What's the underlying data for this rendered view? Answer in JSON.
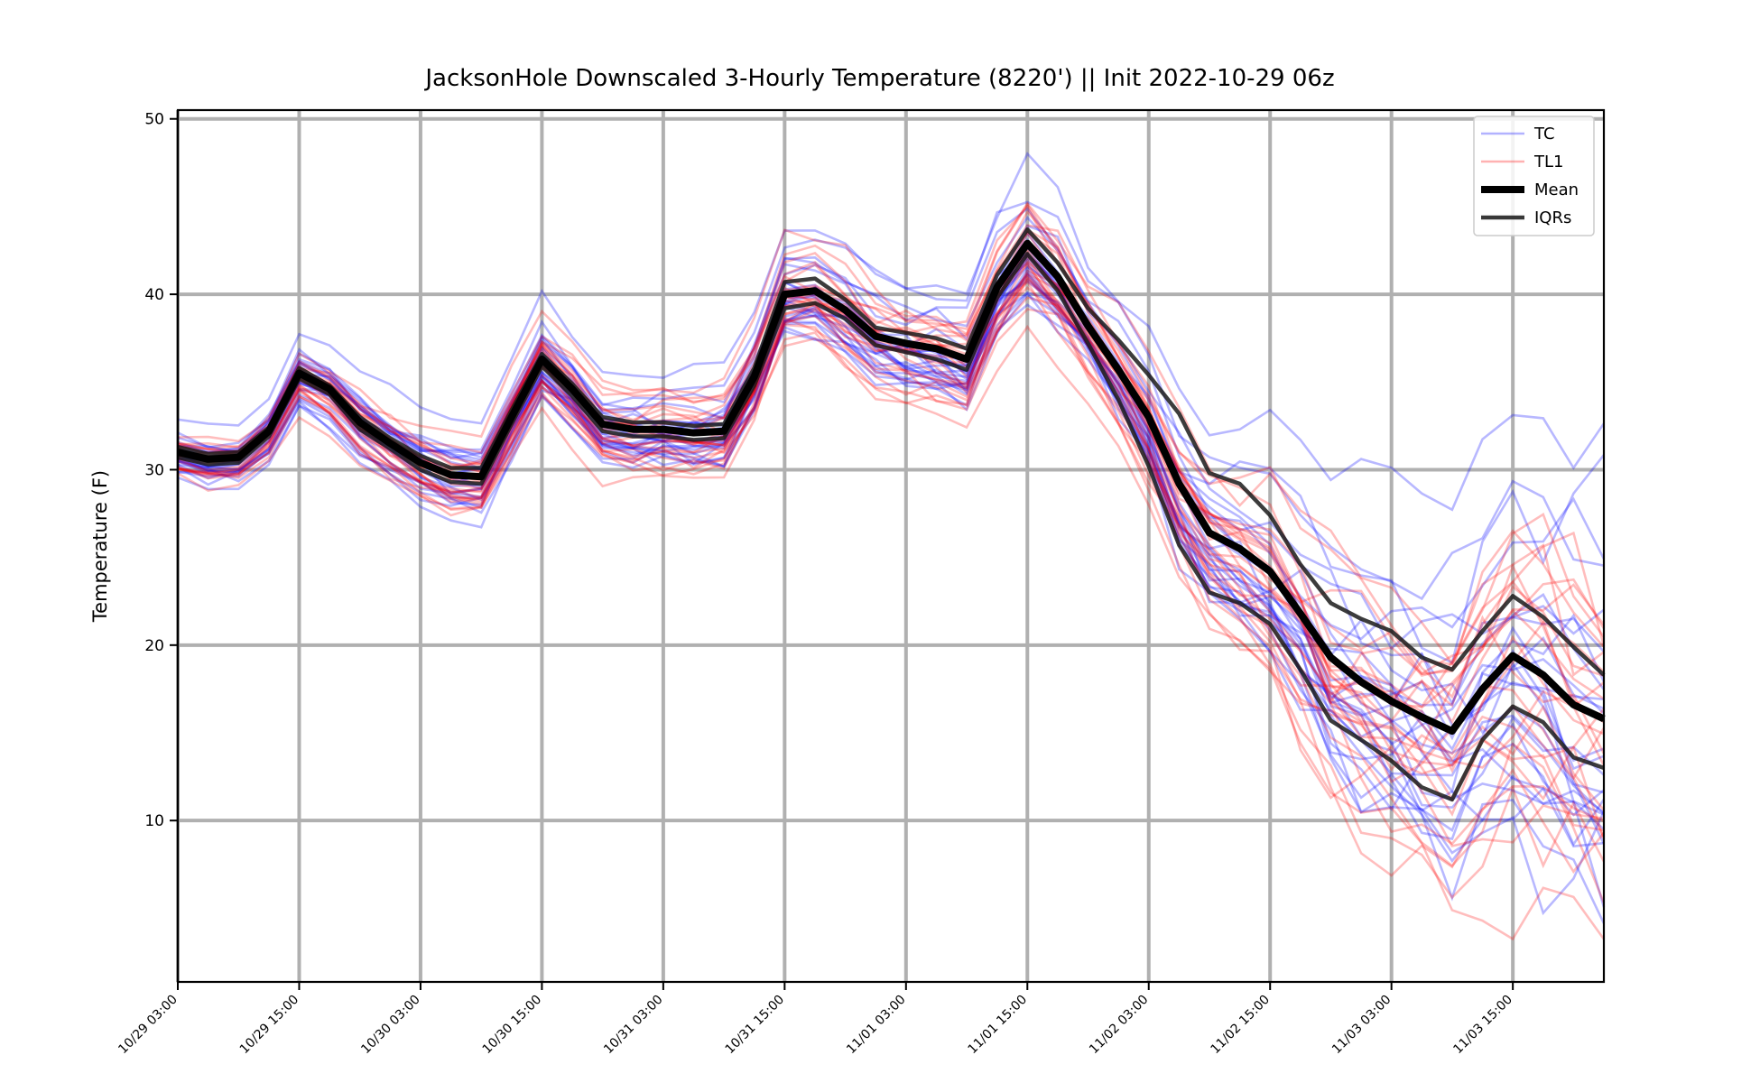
{
  "chart_data": {
    "type": "line",
    "title": "JacksonHole Downscaled 3-Hourly Temperature (8220') || Init 2022-10-29 06z",
    "xlabel": "",
    "ylabel": "Temperature (F)",
    "ylim": [
      0.8,
      50.5
    ],
    "yticks": [
      10,
      20,
      30,
      40,
      50
    ],
    "x_tick_labels": [
      "10/29 03:00",
      "10/29 15:00",
      "10/30 03:00",
      "10/30 15:00",
      "10/31 03:00",
      "10/31 15:00",
      "11/01 03:00",
      "11/01 15:00",
      "11/02 03:00",
      "11/02 15:00",
      "11/03 03:00",
      "11/03 15:00"
    ],
    "x_start": "10/29 03:00",
    "x_end": "11/03 24:00",
    "x_step_hours": 3,
    "grid": true,
    "legend_position": "top-right",
    "colors": {
      "tc": "#0000ff",
      "tl1": "#ff0000",
      "mean": "#000000",
      "iqr": "#1a1a1a",
      "grid": "#b0b0b0"
    },
    "series": [
      {
        "name": "Mean",
        "values": [
          31.0,
          30.6,
          30.7,
          32.2,
          35.5,
          34.6,
          32.7,
          31.5,
          30.4,
          29.7,
          29.6,
          33.0,
          36.3,
          34.6,
          32.6,
          32.3,
          32.3,
          32.1,
          32.2,
          35.3,
          40.0,
          40.2,
          39.1,
          37.6,
          37.2,
          36.9,
          36.3,
          40.4,
          42.9,
          41.0,
          38.2,
          35.7,
          33.0,
          29.2,
          26.4,
          25.5,
          24.2,
          21.8,
          19.3,
          17.9,
          16.8,
          15.9,
          15.1,
          17.5,
          19.4,
          18.3,
          16.6,
          15.8
        ]
      },
      {
        "name": "IQRs",
        "values": [
          31.3,
          30.9,
          31.0,
          32.4,
          35.8,
          34.8,
          33.0,
          31.8,
          30.8,
          30.1,
          30.1,
          33.4,
          36.6,
          34.9,
          33.0,
          32.7,
          32.7,
          32.5,
          32.6,
          35.8,
          40.7,
          40.9,
          39.7,
          38.1,
          37.8,
          37.5,
          36.9,
          41.1,
          43.7,
          41.8,
          39.2,
          37.4,
          35.4,
          33.2,
          29.8,
          29.2,
          27.4,
          24.6,
          22.4,
          21.5,
          20.8,
          19.3,
          18.6,
          20.8,
          22.8,
          21.6,
          19.9,
          18.3
        ]
      },
      {
        "name": "",
        "values": [
          30.7,
          30.3,
          30.4,
          31.9,
          35.2,
          34.3,
          32.3,
          31.2,
          30.0,
          29.3,
          29.2,
          32.6,
          35.9,
          34.2,
          32.2,
          31.9,
          31.9,
          31.7,
          31.8,
          34.8,
          39.2,
          39.5,
          38.6,
          37.1,
          36.7,
          36.3,
          35.7,
          39.8,
          42.3,
          40.2,
          37.2,
          34.0,
          30.2,
          25.7,
          23.0,
          22.4,
          21.2,
          18.6,
          15.7,
          14.6,
          13.4,
          11.9,
          11.2,
          14.6,
          16.5,
          15.6,
          13.6,
          13.0
        ]
      }
    ],
    "legend": [
      {
        "label": "TC",
        "color": "#0000ff"
      },
      {
        "label": "TL1",
        "color": "#ff0000"
      },
      {
        "label": "Mean",
        "color": "#000000"
      },
      {
        "label": "IQRs",
        "color": "#222222"
      }
    ]
  }
}
